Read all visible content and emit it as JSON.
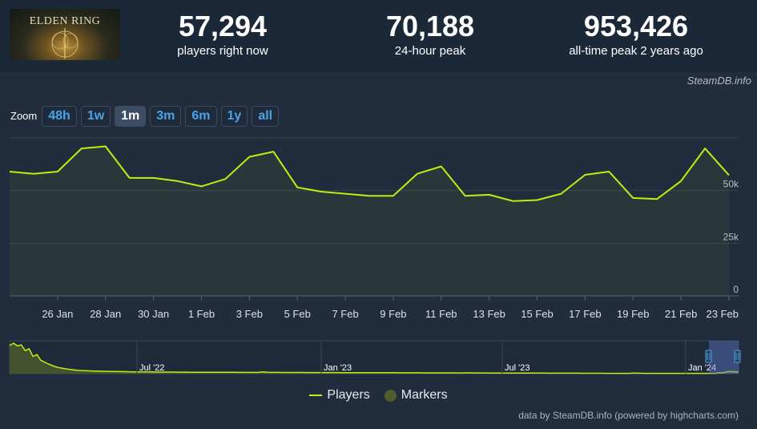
{
  "game": {
    "logo_text": "ELDEN RING"
  },
  "stats": [
    {
      "value": "57,294",
      "label": "players right now"
    },
    {
      "value": "70,188",
      "label": "24-hour peak"
    },
    {
      "value": "953,426",
      "label": "all-time peak 2 years ago"
    }
  ],
  "watermark": "SteamDB.info",
  "zoom": {
    "label": "Zoom",
    "buttons": [
      "48h",
      "1w",
      "1m",
      "3m",
      "6m",
      "1y",
      "all"
    ],
    "active": "1m"
  },
  "legend": {
    "players": "Players",
    "markers": "Markers"
  },
  "credits": "data by SteamDB.info (powered by highcharts.com)",
  "colors": {
    "series": "#beee11",
    "background": "#1b2838",
    "panel": "#212c3d",
    "link": "#49a5e6"
  },
  "chart_data": [
    {
      "type": "line",
      "title": "",
      "xlabel": "",
      "ylabel": "",
      "x": [
        "24 Jan",
        "25 Jan",
        "26 Jan",
        "27 Jan",
        "28 Jan",
        "29 Jan",
        "30 Jan",
        "31 Jan",
        "1 Feb",
        "2 Feb",
        "3 Feb",
        "4 Feb",
        "5 Feb",
        "6 Feb",
        "7 Feb",
        "8 Feb",
        "9 Feb",
        "10 Feb",
        "11 Feb",
        "12 Feb",
        "13 Feb",
        "14 Feb",
        "15 Feb",
        "16 Feb",
        "17 Feb",
        "18 Feb",
        "19 Feb",
        "20 Feb",
        "21 Feb",
        "22 Feb",
        "23 Feb"
      ],
      "x_ticks": [
        "26 Jan",
        "28 Jan",
        "30 Jan",
        "1 Feb",
        "3 Feb",
        "5 Feb",
        "7 Feb",
        "9 Feb",
        "11 Feb",
        "13 Feb",
        "15 Feb",
        "17 Feb",
        "19 Feb",
        "21 Feb",
        "23 Feb"
      ],
      "y_ticks": [
        "0",
        "25k",
        "50k"
      ],
      "ylim": [
        0,
        75000
      ],
      "grid": true,
      "series": [
        {
          "name": "Players",
          "values": [
            59000,
            58000,
            59000,
            70000,
            71000,
            56000,
            56000,
            54500,
            52000,
            55500,
            66000,
            68500,
            51500,
            49500,
            48500,
            47500,
            47500,
            58000,
            61500,
            47500,
            48000,
            45000,
            45500,
            48500,
            57500,
            59000,
            46500,
            46000,
            54500,
            70000,
            57294
          ]
        }
      ]
    },
    {
      "type": "area",
      "title": "navigator",
      "x_ticks": [
        "Jul '22",
        "Jan '23",
        "Jul '23",
        "Jan '24"
      ],
      "series": [
        {
          "name": "Players",
          "values": [
            880000,
            953426,
            870000,
            900000,
            720000,
            780000,
            540000,
            600000,
            420000,
            360000,
            300000,
            250000,
            210000,
            180000,
            160000,
            140000,
            125000,
            110000,
            100000,
            95000,
            90000,
            85000,
            80000,
            78000,
            75000,
            72000,
            70000,
            68000,
            66000,
            64000,
            62000,
            60000,
            58000,
            57000,
            56000,
            55000,
            54000,
            53000,
            52000,
            51000,
            50000,
            50000,
            49000,
            48000,
            48000,
            47000,
            47000,
            46000,
            46000,
            45000,
            45000,
            44000,
            44000,
            43000,
            43000,
            43000,
            42000,
            42000,
            42000,
            41000,
            41000,
            41000,
            40000,
            40000,
            40000,
            55000,
            45000,
            40000,
            39000,
            39000,
            38000,
            38000,
            38000,
            37000,
            37000,
            37000,
            36000,
            36000,
            36000,
            35000,
            35000,
            35000,
            34000,
            34000,
            34000,
            33000,
            33000,
            33000,
            32000,
            32000,
            32000,
            31000,
            31000,
            31000,
            30000,
            30000,
            30000,
            29000,
            29000,
            29000,
            28000,
            28000,
            28000,
            27000,
            27000,
            27000,
            26000,
            26000,
            26000,
            25000,
            25000,
            25000,
            24000,
            24000,
            24000,
            23000,
            23000,
            25000,
            24000,
            23000,
            22000,
            22000,
            22000,
            21000,
            21000,
            21000,
            20000,
            20000,
            20000,
            19000,
            19000,
            19000,
            18000,
            18000,
            18000,
            17000,
            17000,
            17000,
            16000,
            16000,
            16000,
            15000,
            15000,
            15000,
            14000,
            14000,
            14000,
            13000,
            13000,
            13000,
            12000,
            12000,
            12000,
            11000,
            11000,
            11000,
            10000,
            10000,
            10000,
            10000,
            18000,
            15000,
            12000,
            11000,
            10000,
            10000,
            10000,
            10000,
            10000,
            10000,
            10000,
            10000,
            10000,
            10000,
            10000,
            10000,
            10000,
            10000,
            10000,
            10000,
            10000,
            10000,
            30000,
            25000,
            60000,
            70000,
            55000,
            57294
          ]
        }
      ]
    }
  ]
}
